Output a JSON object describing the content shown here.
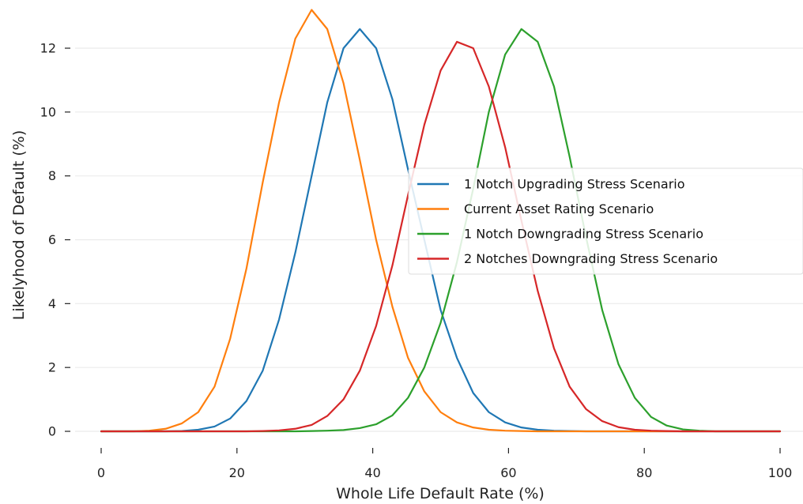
{
  "chart_data": {
    "type": "line",
    "xlabel": "Whole Life Default Rate (%)",
    "ylabel": "Likelyhood of Default (%)",
    "xlim": [
      0,
      100
    ],
    "ylim": [
      0,
      13.2
    ],
    "xticks": [
      0,
      20,
      40,
      60,
      80,
      100
    ],
    "yticks": [
      0,
      2,
      4,
      6,
      8,
      10,
      12
    ],
    "grid": "horizontal",
    "legend_position": "center-right",
    "x": [
      0,
      2.4,
      4.8,
      7.1,
      9.5,
      11.9,
      14.3,
      16.7,
      19.0,
      21.4,
      23.8,
      26.2,
      28.6,
      31.0,
      33.3,
      35.7,
      38.1,
      40.5,
      42.9,
      45.2,
      47.6,
      50.0,
      52.4,
      54.8,
      57.1,
      59.5,
      61.9,
      64.3,
      66.7,
      69.0,
      71.4,
      73.8,
      76.2,
      78.6,
      81.0,
      83.3,
      85.7,
      88.1,
      90.5,
      92.9,
      95.2,
      97.6,
      100
    ],
    "series": [
      {
        "name": "1 Notch Upgrading Stress Scenario",
        "color": "#1f77b4",
        "values": [
          0,
          0,
          0,
          0,
          0,
          0.01,
          0.05,
          0.15,
          0.4,
          0.95,
          1.9,
          3.5,
          5.6,
          8.0,
          10.3,
          12.0,
          12.6,
          12.0,
          10.4,
          8.2,
          6.0,
          3.8,
          2.3,
          1.2,
          0.6,
          0.28,
          0.12,
          0.05,
          0.02,
          0.01,
          0,
          0,
          0,
          0,
          0,
          0,
          0,
          0,
          0,
          0,
          0,
          0,
          0
        ]
      },
      {
        "name": "Current Asset Rating Scenario",
        "color": "#ff7f0e",
        "values": [
          0,
          0,
          0,
          0.02,
          0.08,
          0.25,
          0.6,
          1.4,
          2.9,
          5.1,
          7.8,
          10.3,
          12.3,
          13.2,
          12.6,
          10.9,
          8.5,
          6.0,
          3.9,
          2.3,
          1.25,
          0.6,
          0.28,
          0.12,
          0.05,
          0.02,
          0.01,
          0,
          0,
          0,
          0,
          0,
          0,
          0,
          0,
          0,
          0,
          0,
          0,
          0,
          0,
          0,
          0
        ]
      },
      {
        "name": "1 Notch Downgrading Stress Scenario",
        "color": "#2ca02c",
        "values": [
          0,
          0,
          0,
          0,
          0,
          0,
          0,
          0,
          0,
          0,
          0,
          0,
          0,
          0.01,
          0.02,
          0.04,
          0.1,
          0.22,
          0.5,
          1.05,
          2.0,
          3.4,
          5.3,
          7.6,
          10.0,
          11.8,
          12.6,
          12.2,
          10.8,
          8.6,
          6.1,
          3.8,
          2.1,
          1.05,
          0.45,
          0.18,
          0.06,
          0.02,
          0,
          0,
          0,
          0,
          0
        ]
      },
      {
        "name": "2 Notches Downgrading Stress Scenario",
        "color": "#d62728",
        "values": [
          0,
          0,
          0,
          0,
          0,
          0,
          0,
          0,
          0,
          0,
          0.01,
          0.03,
          0.08,
          0.2,
          0.48,
          1.0,
          1.9,
          3.3,
          5.2,
          7.4,
          9.6,
          11.3,
          12.2,
          12.0,
          10.8,
          8.9,
          6.6,
          4.4,
          2.6,
          1.4,
          0.7,
          0.32,
          0.13,
          0.05,
          0.02,
          0.01,
          0,
          0,
          0,
          0,
          0,
          0,
          0
        ]
      }
    ]
  }
}
